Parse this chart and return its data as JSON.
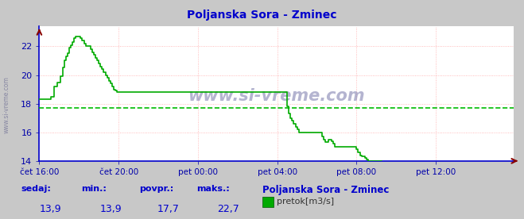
{
  "title": "Poljanska Sora - Zminec",
  "title_color": "#0000cc",
  "bg_color": "#c8c8c8",
  "plot_bg_color": "#ffffff",
  "line_color": "#00aa00",
  "avg_line_color": "#00bb00",
  "avg_value": 17.7,
  "min_value": 13.9,
  "max_value": 22.7,
  "current_value": 13.9,
  "xlabel_color": "#0000aa",
  "ylabel_color": "#0000aa",
  "grid_color_h": "#ffaaaa",
  "grid_color_v": "#ffaaaa",
  "xmin": 0,
  "xmax": 287,
  "ymin": 14,
  "ymax": 23.4,
  "yticks": [
    14,
    16,
    18,
    20,
    22
  ],
  "xtick_labels": [
    "čet 16:00",
    "čet 20:00",
    "pet 00:00",
    "pet 04:00",
    "pet 08:00",
    "pet 12:00"
  ],
  "xtick_positions": [
    0,
    48,
    96,
    144,
    192,
    240
  ],
  "bottom_labels": [
    "sedaj:",
    "min.:",
    "povpr.:",
    "maks.:"
  ],
  "bottom_values": [
    "13,9",
    "13,9",
    "17,7",
    "22,7"
  ],
  "bottom_station": "Poljanska Sora - Zminec",
  "bottom_legend": "pretok[m3/s]",
  "watermark": "www.si-vreme.com",
  "y_arrow_color": "#880000",
  "x_arrow_color": "#880000",
  "left_spine_color": "#0000cc",
  "bottom_spine_color": "#0000cc",
  "flow_data": [
    18.3,
    18.3,
    18.3,
    18.3,
    18.3,
    18.3,
    18.3,
    18.5,
    18.5,
    19.2,
    19.2,
    19.5,
    19.5,
    19.9,
    20.5,
    21.0,
    21.3,
    21.5,
    21.9,
    22.1,
    22.3,
    22.6,
    22.7,
    22.7,
    22.7,
    22.6,
    22.4,
    22.2,
    22.0,
    22.0,
    22.0,
    21.8,
    21.6,
    21.4,
    21.2,
    21.0,
    20.8,
    20.6,
    20.4,
    20.2,
    20.0,
    19.8,
    19.6,
    19.4,
    19.2,
    19.0,
    18.9,
    18.8,
    18.8,
    18.8,
    18.8,
    18.8,
    18.8,
    18.8,
    18.8,
    18.8,
    18.8,
    18.8,
    18.8,
    18.8,
    18.8,
    18.8,
    18.8,
    18.8,
    18.8,
    18.8,
    18.8,
    18.8,
    18.8,
    18.8,
    18.8,
    18.8,
    18.8,
    18.8,
    18.8,
    18.8,
    18.8,
    18.8,
    18.8,
    18.8,
    18.8,
    18.8,
    18.8,
    18.8,
    18.8,
    18.8,
    18.8,
    18.8,
    18.8,
    18.8,
    18.8,
    18.8,
    18.8,
    18.8,
    18.8,
    18.8,
    18.8,
    18.8,
    18.8,
    18.8,
    18.8,
    18.8,
    18.8,
    18.8,
    18.8,
    18.8,
    18.8,
    18.8,
    18.8,
    18.8,
    18.8,
    18.8,
    18.8,
    18.8,
    18.8,
    18.8,
    18.8,
    18.8,
    18.8,
    18.8,
    18.8,
    18.8,
    18.8,
    18.8,
    18.8,
    18.8,
    18.8,
    18.8,
    18.8,
    18.8,
    18.8,
    18.8,
    18.8,
    18.8,
    18.8,
    18.8,
    18.8,
    18.8,
    18.8,
    18.8,
    18.8,
    18.8,
    18.8,
    18.8,
    18.8,
    18.8,
    18.8,
    18.8,
    18.8,
    18.8,
    17.8,
    17.3,
    17.0,
    16.8,
    16.6,
    16.4,
    16.2,
    16.0,
    16.0,
    16.0,
    16.0,
    16.0,
    16.0,
    16.0,
    16.0,
    16.0,
    16.0,
    16.0,
    16.0,
    16.0,
    16.0,
    15.7,
    15.5,
    15.3,
    15.3,
    15.5,
    15.5,
    15.4,
    15.2,
    15.0,
    15.0,
    15.0,
    15.0,
    15.0,
    15.0,
    15.0,
    15.0,
    15.0,
    15.0,
    15.0,
    15.0,
    15.0,
    14.8,
    14.6,
    14.4,
    14.3,
    14.3,
    14.2,
    14.1,
    14.0,
    14.0,
    14.0,
    14.0,
    14.0,
    14.0,
    14.0,
    14.0,
    13.9,
    13.9,
    13.9,
    13.9,
    13.9,
    13.9,
    13.9,
    13.9,
    13.9,
    13.9,
    13.9,
    13.9,
    13.9,
    13.9,
    13.9,
    13.9,
    13.9,
    13.9,
    13.9,
    13.9,
    13.9,
    13.9,
    13.9,
    13.9,
    13.9,
    13.9,
    13.9,
    13.9,
    13.9,
    13.9,
    13.9,
    13.9,
    13.9,
    13.9,
    13.9,
    13.9,
    13.9,
    13.9,
    13.9,
    13.9,
    13.9,
    13.9,
    13.9,
    13.9,
    13.9,
    13.9,
    13.9,
    13.9,
    13.9,
    13.9,
    13.9,
    13.9,
    13.9,
    13.9,
    13.9,
    13.9,
    13.9,
    13.9,
    13.9,
    13.9,
    13.9,
    13.9,
    13.9,
    13.9,
    13.9,
    13.9,
    13.9,
    13.9,
    13.9,
    13.9,
    13.9,
    13.9,
    13.9,
    13.9,
    13.9,
    13.9,
    13.9,
    13.9
  ]
}
